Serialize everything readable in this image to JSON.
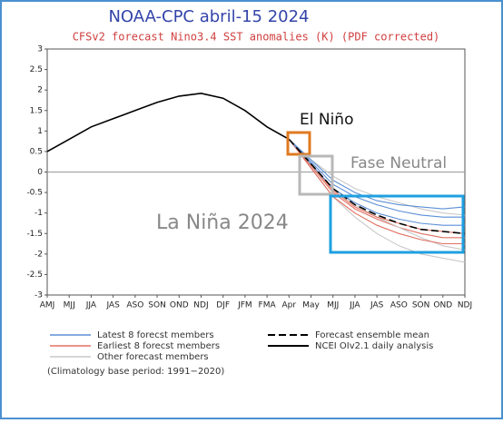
{
  "chart_data": {
    "type": "line",
    "title": "NOAA-CPC abril-15 2024",
    "subtitle": "CFSv2 forecast Nino3.4 SST anomalies (K) (PDF corrected)",
    "annotations": [
      "El Niño",
      "Fase Neutral",
      "La Niña 2024"
    ],
    "footnote": "(Climatology base period: 1991−2020)",
    "categories": [
      "AMJ",
      "MJJ",
      "JJA",
      "JAS",
      "ASO",
      "SON",
      "OND",
      "NDJ",
      "DJF",
      "JFM",
      "FMA",
      "Apr",
      "May",
      "MJJ",
      "JJA",
      "JAS",
      "ASO",
      "SON",
      "OND",
      "NDJ"
    ],
    "ylim": [
      -3,
      3
    ],
    "yticks": [
      -3,
      -2.5,
      -2,
      -1.5,
      -1,
      -0.5,
      0,
      0.5,
      1,
      1.5,
      2,
      2.5,
      3
    ],
    "grid": false,
    "series": [
      {
        "name": "Latest 8 forecst members",
        "color": "#5b8fd6",
        "values": [
          null,
          null,
          null,
          null,
          null,
          null,
          null,
          null,
          null,
          null,
          null,
          0.8,
          0.25,
          -0.3,
          -0.6,
          -0.8,
          -0.95,
          -1.05,
          -1.1,
          -1.1
        ]
      },
      {
        "name": "Earliest 8 forecst members",
        "color": "#e07060",
        "values": [
          null,
          null,
          null,
          null,
          null,
          null,
          null,
          null,
          null,
          null,
          null,
          0.8,
          0.15,
          -0.5,
          -0.9,
          -1.15,
          -1.35,
          -1.5,
          -1.6,
          -1.6
        ]
      },
      {
        "name": "Other forecast members",
        "color": "#c8c8c8",
        "values": [
          null,
          null,
          null,
          null,
          null,
          null,
          null,
          null,
          null,
          null,
          null,
          0.8,
          0.2,
          -0.4,
          -0.8,
          -1.1,
          -1.35,
          -1.6,
          -1.8,
          -1.9
        ]
      },
      {
        "name": "Forecast ensemble mean",
        "color": "#000000",
        "dashed": true,
        "values": [
          null,
          null,
          null,
          null,
          null,
          null,
          null,
          null,
          null,
          null,
          null,
          0.8,
          0.2,
          -0.4,
          -0.8,
          -1.05,
          -1.25,
          -1.4,
          -1.45,
          -1.5
        ]
      },
      {
        "name": "NCEI OIv2.1 daily analysis",
        "color": "#000000",
        "values": [
          0.5,
          0.8,
          1.1,
          1.3,
          1.5,
          1.7,
          1.85,
          1.92,
          1.8,
          1.5,
          1.1,
          0.8,
          null,
          null,
          null,
          null,
          null,
          null,
          null,
          null
        ]
      },
      {
        "color": "#c8c8c8",
        "values": [
          null,
          null,
          null,
          null,
          null,
          null,
          null,
          null,
          null,
          null,
          null,
          0.8,
          0.3,
          -0.1,
          -0.4,
          -0.6,
          -0.75,
          -0.9,
          -1.0,
          -1.05
        ]
      },
      {
        "color": "#c8c8c8",
        "values": [
          null,
          null,
          null,
          null,
          null,
          null,
          null,
          null,
          null,
          null,
          null,
          0.8,
          0.1,
          -0.6,
          -1.1,
          -1.5,
          -1.8,
          -2.0,
          -2.1,
          -2.2
        ]
      },
      {
        "color": "#e07060",
        "values": [
          null,
          null,
          null,
          null,
          null,
          null,
          null,
          null,
          null,
          null,
          null,
          0.8,
          0.1,
          -0.6,
          -1.0,
          -1.3,
          -1.5,
          -1.65,
          -1.75,
          -1.75
        ]
      },
      {
        "color": "#e07060",
        "values": [
          null,
          null,
          null,
          null,
          null,
          null,
          null,
          null,
          null,
          null,
          null,
          0.8,
          0.2,
          -0.45,
          -0.85,
          -1.1,
          -1.25,
          -1.4,
          -1.45,
          -1.5
        ]
      },
      {
        "color": "#5b8fd6",
        "values": [
          null,
          null,
          null,
          null,
          null,
          null,
          null,
          null,
          null,
          null,
          null,
          0.8,
          0.3,
          -0.2,
          -0.5,
          -0.7,
          -0.8,
          -0.85,
          -0.9,
          -0.85
        ]
      },
      {
        "color": "#5b8fd6",
        "values": [
          null,
          null,
          null,
          null,
          null,
          null,
          null,
          null,
          null,
          null,
          null,
          0.8,
          0.2,
          -0.4,
          -0.75,
          -1.0,
          -1.15,
          -1.25,
          -1.3,
          -1.3
        ]
      }
    ]
  }
}
